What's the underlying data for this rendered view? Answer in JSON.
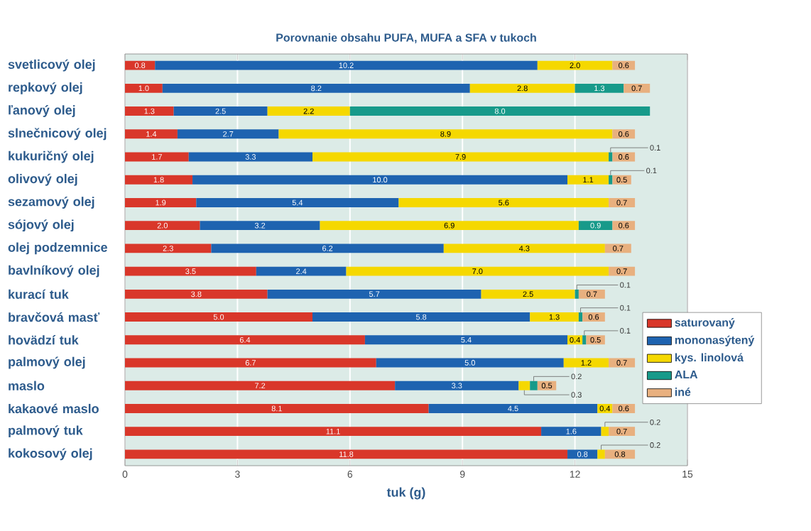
{
  "chart_data": {
    "type": "bar",
    "orientation": "horizontal",
    "stacked": true,
    "title": "Porovnanie obsahu PUFA, MUFA a SFA v tukoch",
    "xlabel": "tuk (g)",
    "categories": [
      "svetlicový olej",
      "repkový olej",
      "ľanový olej",
      "slnečnicový olej",
      "kukuričný olej",
      "olivový olej",
      "sezamový olej",
      "sójový olej",
      "olej podzemnice",
      "bavlníkový olej",
      "kurací tuk",
      "bravčová masť",
      "hovädzí tuk",
      "palmový olej",
      "maslo",
      "kakaové maslo",
      "palmový tuk",
      "kokosový olej"
    ],
    "series": [
      {
        "name": "saturovaný",
        "color": "#d9372a",
        "values": [
          0.8,
          1.0,
          1.3,
          1.4,
          1.7,
          1.8,
          1.9,
          2.0,
          2.3,
          3.5,
          3.8,
          5.0,
          6.4,
          6.7,
          7.2,
          8.1,
          11.1,
          11.8
        ],
        "value_labels": [
          "0.8",
          "1.0",
          "1.3",
          "1.4",
          "1.7",
          "1.8",
          "1.9",
          "2.0",
          "2.3",
          "3.5",
          "3.8",
          "5.0",
          "6.4",
          "6.7",
          "7.2",
          "8.1",
          "11.1",
          "11.8"
        ]
      },
      {
        "name": "mononasýtený",
        "color": "#1e63b0",
        "values": [
          10.2,
          8.2,
          2.5,
          2.7,
          3.3,
          10.0,
          5.4,
          3.2,
          6.2,
          2.4,
          5.7,
          5.8,
          5.4,
          5.0,
          3.3,
          4.5,
          1.6,
          0.8
        ],
        "value_labels": [
          "10.2",
          "8.2",
          "2.5",
          "2.7",
          "3.3",
          "10.0",
          "5.4",
          "3.2",
          "6.2",
          "2.4",
          "5.7",
          "5.8",
          "5.4",
          "5.0",
          "3.3",
          "4.5",
          "1.6",
          "0.8"
        ]
      },
      {
        "name": "kys. linolová",
        "color": "#f5d800",
        "values": [
          2.0,
          2.8,
          2.2,
          8.9,
          7.9,
          1.1,
          5.6,
          6.9,
          4.3,
          7.0,
          2.5,
          1.3,
          0.4,
          1.2,
          0.3,
          0.4,
          0.2,
          0.2
        ],
        "value_labels": [
          "2.0",
          "2.8",
          "2.2",
          "8.9",
          "7.9",
          "1.1",
          "5.6",
          "6.9",
          "4.3",
          "7.0",
          "2.5",
          "1.3",
          "0.4",
          "1.2",
          "0.3",
          "0.4",
          "0.2",
          "0.2"
        ]
      },
      {
        "name": "ALA",
        "color": "#179a8a",
        "values": [
          null,
          1.3,
          8.0,
          null,
          0.1,
          0.1,
          null,
          0.9,
          null,
          null,
          0.1,
          0.1,
          0.1,
          null,
          0.2,
          null,
          null,
          null
        ],
        "value_labels": [
          null,
          "1.3",
          "8.0",
          null,
          "0.1",
          "0.1",
          null,
          "0.9",
          null,
          null,
          "0.1",
          "0.1",
          "0.1",
          null,
          "0.2",
          null,
          null,
          null
        ]
      },
      {
        "name": "iné",
        "color": "#e8b07f",
        "values": [
          0.6,
          0.7,
          null,
          0.6,
          0.6,
          0.5,
          0.7,
          0.6,
          0.7,
          0.7,
          0.7,
          0.6,
          0.5,
          0.7,
          0.5,
          0.6,
          0.7,
          0.8
        ],
        "value_labels": [
          "0.6",
          "0.7",
          null,
          "0.6",
          "0.6",
          "0.5",
          "0.7",
          "0.6",
          "0.7",
          "0.7",
          "0.7",
          "0.6",
          "0.5",
          "0.7",
          "0.5",
          "0.6",
          "0.7",
          "0.8"
        ]
      }
    ],
    "xlim": [
      0,
      15
    ],
    "xticks": [
      0,
      3,
      6,
      9,
      12,
      15
    ],
    "grid": "x",
    "legend": "right"
  }
}
